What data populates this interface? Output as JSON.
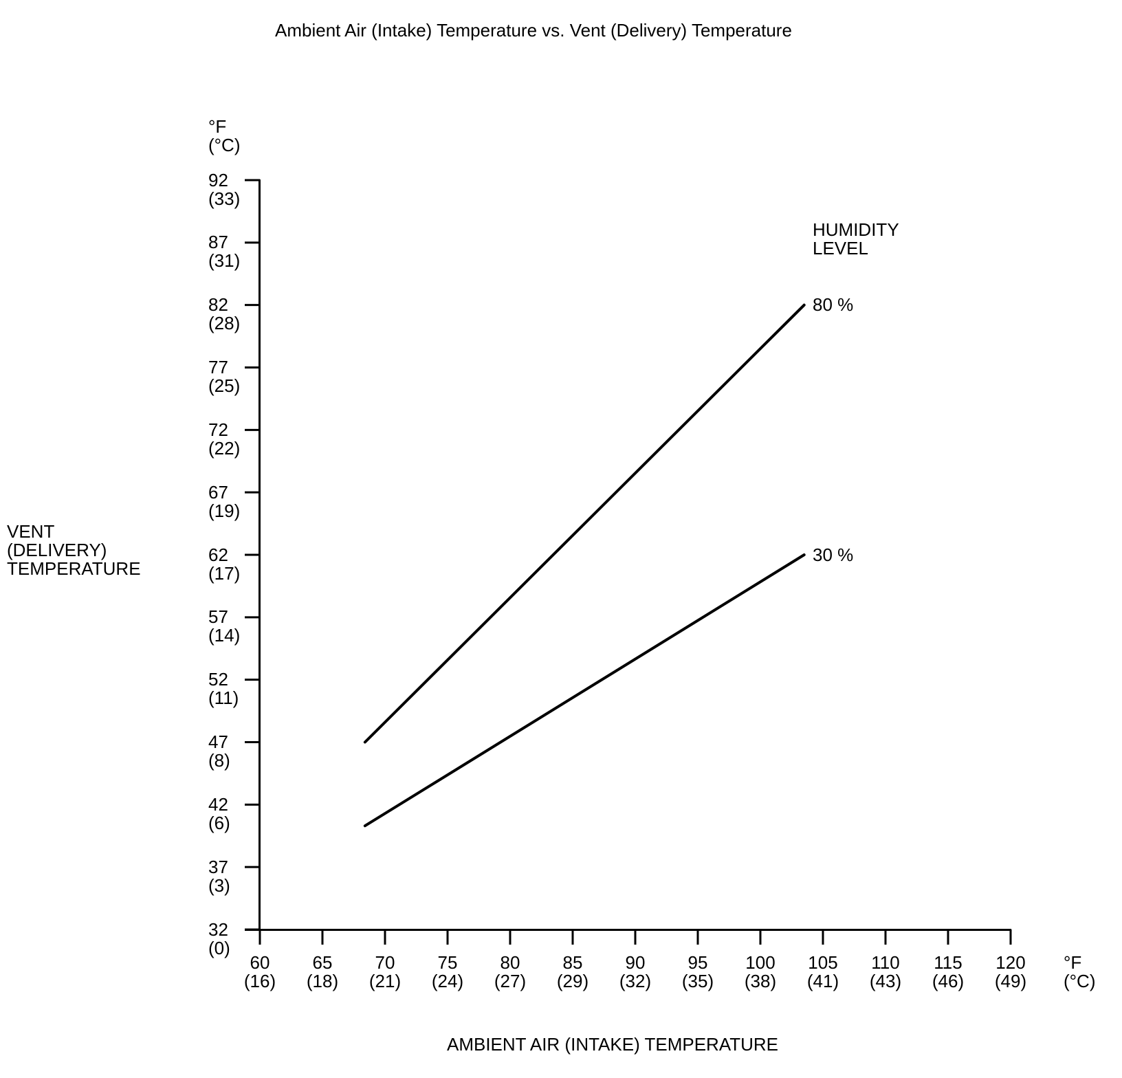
{
  "chart_data": {
    "type": "line",
    "title": "Ambient Air (Intake) Temperature vs. Vent (Delivery) Temperature",
    "xlabel": "AMBIENT AIR (INTAKE) TEMPERATURE",
    "ylabel": "VENT\n(DELIVERY)\nTEMPERATURE",
    "x_unit_label": "°F\n(°C)",
    "y_unit_label": "°F\n(°C)",
    "legend_title": "HUMIDITY\nLEVEL",
    "xlim": [
      60,
      120
    ],
    "ylim": [
      32,
      92
    ],
    "grid": false,
    "legend_position": "right-of-line-ends",
    "line_color": "#000000",
    "text_color": "#000000",
    "background_color": "#ffffff",
    "x_ticks": [
      {
        "f": 60,
        "c": 16
      },
      {
        "f": 65,
        "c": 18
      },
      {
        "f": 70,
        "c": 21
      },
      {
        "f": 75,
        "c": 24
      },
      {
        "f": 80,
        "c": 27
      },
      {
        "f": 85,
        "c": 29
      },
      {
        "f": 90,
        "c": 32
      },
      {
        "f": 95,
        "c": 35
      },
      {
        "f": 100,
        "c": 38
      },
      {
        "f": 105,
        "c": 41
      },
      {
        "f": 110,
        "c": 43
      },
      {
        "f": 115,
        "c": 46
      },
      {
        "f": 120,
        "c": 49
      }
    ],
    "y_ticks": [
      {
        "f": 92,
        "c": 33
      },
      {
        "f": 87,
        "c": 31
      },
      {
        "f": 82,
        "c": 28
      },
      {
        "f": 77,
        "c": 25
      },
      {
        "f": 72,
        "c": 22
      },
      {
        "f": 67,
        "c": 19
      },
      {
        "f": 62,
        "c": 17
      },
      {
        "f": 57,
        "c": 14
      },
      {
        "f": 52,
        "c": 11
      },
      {
        "f": 47,
        "c": 8
      },
      {
        "f": 42,
        "c": 6
      },
      {
        "f": 37,
        "c": 3
      },
      {
        "f": 32,
        "c": 0
      }
    ],
    "series": [
      {
        "name": "80 percent humidity",
        "label": "80 %",
        "points": [
          [
            68.4,
            47
          ],
          [
            103.5,
            82
          ]
        ]
      },
      {
        "name": "30 percent humidity",
        "label": "30 %",
        "points": [
          [
            68.4,
            40.3
          ],
          [
            103.5,
            62
          ]
        ]
      }
    ]
  }
}
